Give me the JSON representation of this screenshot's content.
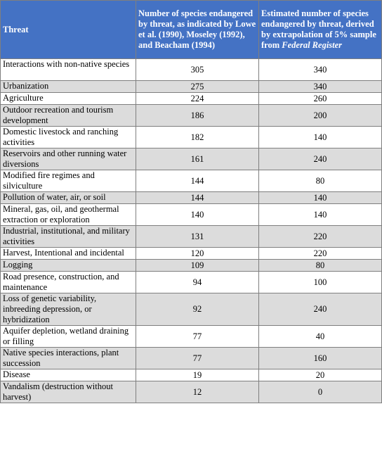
{
  "table": {
    "headers": {
      "threat": "Threat",
      "col2": "Number of species endangered by threat, as indicated by Lowe et al. (1990), Moseley (1992), and Beacham (1994)",
      "col3_prefix": "Estimated number of species endangered by threat, derived by extrapolation of 5% sample from ",
      "col3_italic": "Federal Register"
    },
    "rows": [
      {
        "threat": "Interactions with non-native species",
        "lowe": "305",
        "estimated": "340"
      },
      {
        "threat": "Urbanization",
        "lowe": "275",
        "estimated": "340"
      },
      {
        "threat": "Agriculture",
        "lowe": "224",
        "estimated": "260"
      },
      {
        "threat": "Outdoor recreation and tourism development",
        "lowe": "186",
        "estimated": "200"
      },
      {
        "threat": "Domestic livestock and ranching activities",
        "lowe": "182",
        "estimated": "140"
      },
      {
        "threat": "Reservoirs and other running water diversions",
        "lowe": "161",
        "estimated": "240"
      },
      {
        "threat": "Modified fire regimes and silviculture",
        "lowe": "144",
        "estimated": "80"
      },
      {
        "threat": "Pollution of water, air, or soil",
        "lowe": "144",
        "estimated": "140"
      },
      {
        "threat": "Mineral, gas, oil, and geothermal extraction or exploration",
        "lowe": "140",
        "estimated": "140"
      },
      {
        "threat": "Industrial, institutional, and military activities",
        "lowe": "131",
        "estimated": "220"
      },
      {
        "threat": "Harvest, Intentional and incidental",
        "lowe": "120",
        "estimated": "220"
      },
      {
        "threat": "Logging",
        "lowe": "109",
        "estimated": "80"
      },
      {
        "threat": "Road presence, construction, and maintenance",
        "lowe": "94",
        "estimated": "100"
      },
      {
        "threat": "Loss of genetic variability, inbreeding depression, or hybridization",
        "lowe": "92",
        "estimated": "240"
      },
      {
        "threat": "Aquifer depletion, wetland draining or filling",
        "lowe": "77",
        "estimated": "40"
      },
      {
        "threat": "Native species interactions, plant succession",
        "lowe": "77",
        "estimated": "160"
      },
      {
        "threat": "Disease",
        "lowe": "19",
        "estimated": "20"
      },
      {
        "threat": "Vandalism (destruction without harvest)",
        "lowe": "12",
        "estimated": "0"
      }
    ]
  }
}
